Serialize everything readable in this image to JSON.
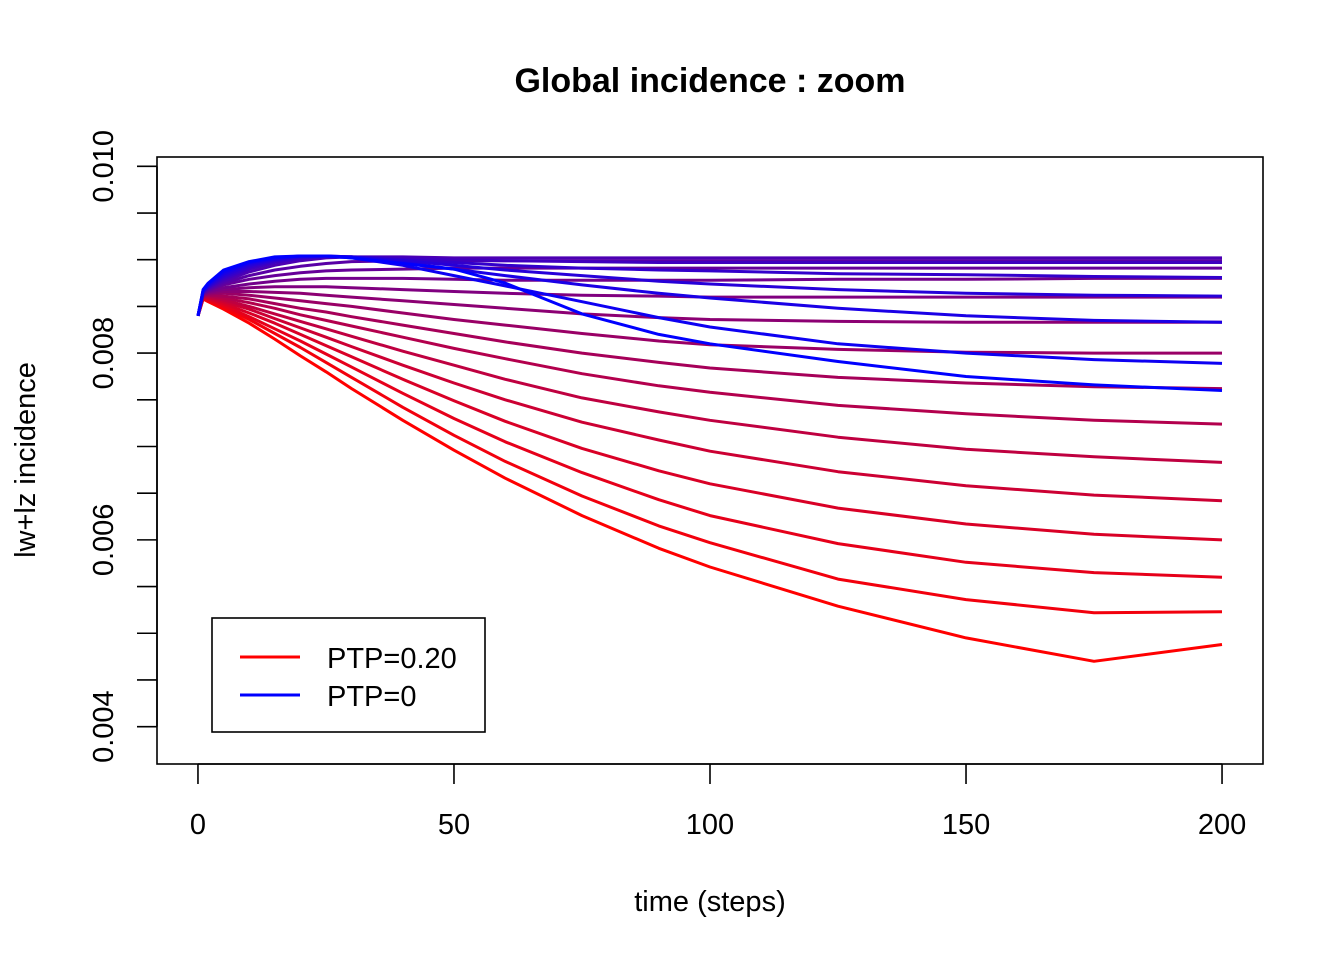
{
  "chart_data": {
    "type": "line",
    "title": "Global incidence : zoom",
    "xlabel": "time (steps)",
    "ylabel": "lw+lz incidence",
    "xlim": [
      -8,
      208
    ],
    "ylim": [
      0.0036,
      0.0101
    ],
    "x_ticks": [
      "0",
      "50",
      "100",
      "150",
      "200"
    ],
    "y_ticks": [
      "0.004",
      "0.006",
      "0.008",
      "0.010"
    ],
    "legend_position": "bottom-left",
    "colors": {
      "start": "#ff0000",
      "end": "#0000ff"
    },
    "legend": [
      {
        "label": "PTP=0.20",
        "color": "#ff0000"
      },
      {
        "label": "PTP=0",
        "color": "#0000ff"
      }
    ],
    "series_note": "21 curves, PTP varying from 0.20 (red) to 0 (blue); each line sampled at t = 0, 1, 2, 5, 10, 15, 20, 25, 30, 40, 50, 60, 75, 90, 100, 125, 150, 175, 200",
    "x": [
      0,
      1,
      2,
      5,
      10,
      15,
      20,
      25,
      30,
      40,
      50,
      60,
      75,
      90,
      100,
      125,
      150,
      175,
      200
    ],
    "series": [
      {
        "values": [
          0.0084,
          0.00858,
          0.00855,
          0.00847,
          0.00832,
          0.00815,
          0.00797,
          0.0078,
          0.00762,
          0.00728,
          0.00696,
          0.00666,
          0.00626,
          0.00591,
          0.00571,
          0.00529,
          0.00495,
          0.0047,
          0.00488
        ]
      },
      {
        "values": [
          0.0084,
          0.00858,
          0.00856,
          0.00849,
          0.00836,
          0.00821,
          0.00806,
          0.0079,
          0.00774,
          0.00742,
          0.00712,
          0.00684,
          0.00647,
          0.00615,
          0.00597,
          0.00558,
          0.00536,
          0.00522,
          0.00523
        ]
      },
      {
        "values": [
          0.0084,
          0.00859,
          0.00857,
          0.00851,
          0.00839,
          0.00826,
          0.00813,
          0.00799,
          0.00785,
          0.00757,
          0.0073,
          0.00705,
          0.00672,
          0.00643,
          0.00626,
          0.00596,
          0.00576,
          0.00565,
          0.0056
        ]
      },
      {
        "values": [
          0.0084,
          0.00859,
          0.00858,
          0.00853,
          0.00843,
          0.00832,
          0.0082,
          0.00808,
          0.00796,
          0.00772,
          0.00749,
          0.00727,
          0.00698,
          0.00674,
          0.0066,
          0.00634,
          0.00617,
          0.00606,
          0.006
        ]
      },
      {
        "values": [
          0.0084,
          0.0086,
          0.00859,
          0.00855,
          0.00847,
          0.00837,
          0.00827,
          0.00817,
          0.00807,
          0.00787,
          0.00768,
          0.0075,
          0.00726,
          0.00707,
          0.00695,
          0.00673,
          0.00658,
          0.00648,
          0.00642
        ]
      },
      {
        "values": [
          0.0084,
          0.0086,
          0.0086,
          0.00857,
          0.0085,
          0.00842,
          0.00834,
          0.00826,
          0.00818,
          0.00802,
          0.00787,
          0.00772,
          0.00752,
          0.00737,
          0.00728,
          0.0071,
          0.00697,
          0.00689,
          0.00683
        ]
      },
      {
        "values": [
          0.0084,
          0.00861,
          0.00861,
          0.00859,
          0.00854,
          0.00848,
          0.00841,
          0.00835,
          0.00829,
          0.00817,
          0.00805,
          0.00794,
          0.00778,
          0.00765,
          0.00758,
          0.00744,
          0.00735,
          0.00728,
          0.00724
        ]
      },
      {
        "values": [
          0.0084,
          0.00861,
          0.00862,
          0.00861,
          0.00858,
          0.00853,
          0.00848,
          0.00844,
          0.00839,
          0.0083,
          0.00821,
          0.00812,
          0.008,
          0.0079,
          0.00784,
          0.00774,
          0.00768,
          0.00764,
          0.00762
        ]
      },
      {
        "values": [
          0.0084,
          0.00862,
          0.00863,
          0.00864,
          0.00862,
          0.00859,
          0.00856,
          0.00853,
          0.0085,
          0.00843,
          0.00836,
          0.0083,
          0.00821,
          0.00813,
          0.00809,
          0.00804,
          0.00801,
          0.008,
          0.008
        ]
      },
      {
        "values": [
          0.0084,
          0.00862,
          0.00864,
          0.00866,
          0.00866,
          0.00865,
          0.00864,
          0.00862,
          0.0086,
          0.00856,
          0.00852,
          0.00848,
          0.00842,
          0.00838,
          0.00836,
          0.00834,
          0.00833,
          0.00833,
          0.00833
        ]
      },
      {
        "values": [
          0.0084,
          0.00863,
          0.00865,
          0.00868,
          0.0087,
          0.00871,
          0.00871,
          0.00871,
          0.0087,
          0.00868,
          0.00866,
          0.00864,
          0.00862,
          0.00861,
          0.0086,
          0.0086,
          0.0086,
          0.0086,
          0.0086
        ]
      },
      {
        "values": [
          0.0084,
          0.00863,
          0.00866,
          0.0087,
          0.00874,
          0.00877,
          0.00879,
          0.0088,
          0.0088,
          0.0088,
          0.00879,
          0.00878,
          0.00878,
          0.00878,
          0.00878,
          0.00879,
          0.00879,
          0.0088,
          0.0088
        ]
      },
      {
        "values": [
          0.0084,
          0.00864,
          0.00867,
          0.00873,
          0.00879,
          0.00883,
          0.00886,
          0.00888,
          0.00889,
          0.0089,
          0.00891,
          0.00891,
          0.00891,
          0.00891,
          0.00891,
          0.00891,
          0.00891,
          0.00891,
          0.00891
        ]
      },
      {
        "values": [
          0.0084,
          0.00864,
          0.00868,
          0.00875,
          0.00883,
          0.00889,
          0.00893,
          0.00896,
          0.00898,
          0.00899,
          0.00899,
          0.00899,
          0.00899,
          0.00899,
          0.00899,
          0.00899,
          0.00899,
          0.00899,
          0.00899
        ]
      },
      {
        "values": [
          0.0084,
          0.00865,
          0.00869,
          0.00877,
          0.00887,
          0.00894,
          0.00899,
          0.00902,
          0.00903,
          0.00903,
          0.00902,
          0.00902,
          0.00902,
          0.00902,
          0.00902,
          0.00902,
          0.00902,
          0.00902,
          0.00902
        ]
      },
      {
        "values": [
          0.0084,
          0.00865,
          0.0087,
          0.00879,
          0.0089,
          0.00897,
          0.00901,
          0.00903,
          0.00903,
          0.00902,
          0.009,
          0.00899,
          0.00898,
          0.00897,
          0.00897,
          0.00897,
          0.00897,
          0.00897,
          0.00897
        ]
      },
      {
        "values": [
          0.0084,
          0.00866,
          0.00871,
          0.00881,
          0.00892,
          0.00899,
          0.00902,
          0.00903,
          0.00903,
          0.009,
          0.00897,
          0.00894,
          0.00891,
          0.00889,
          0.00888,
          0.00885,
          0.00884,
          0.00882,
          0.00881
        ]
      },
      {
        "values": [
          0.0084,
          0.00866,
          0.00872,
          0.00883,
          0.00894,
          0.009,
          0.00903,
          0.00904,
          0.00903,
          0.00899,
          0.00894,
          0.00889,
          0.00883,
          0.00877,
          0.00874,
          0.00868,
          0.00864,
          0.00862,
          0.00861
        ]
      },
      {
        "values": [
          0.0084,
          0.00867,
          0.00873,
          0.00885,
          0.00896,
          0.00901,
          0.00904,
          0.00904,
          0.00903,
          0.00897,
          0.0089,
          0.00883,
          0.00873,
          0.00864,
          0.00859,
          0.00848,
          0.0084,
          0.00835,
          0.00833
        ]
      },
      {
        "values": [
          0.0084,
          0.00867,
          0.00874,
          0.00887,
          0.00897,
          0.00902,
          0.00904,
          0.00904,
          0.00902,
          0.00894,
          0.00883,
          0.00872,
          0.00855,
          0.00838,
          0.00828,
          0.0081,
          0.008,
          0.00793,
          0.00789
        ]
      },
      {
        "values": [
          0.0084,
          0.00868,
          0.00875,
          0.00889,
          0.00898,
          0.00903,
          0.00904,
          0.00904,
          0.00902,
          0.00896,
          0.0089,
          0.00875,
          0.00842,
          0.0082,
          0.0081,
          0.00791,
          0.00775,
          0.00766,
          0.0076
        ]
      }
    ]
  }
}
